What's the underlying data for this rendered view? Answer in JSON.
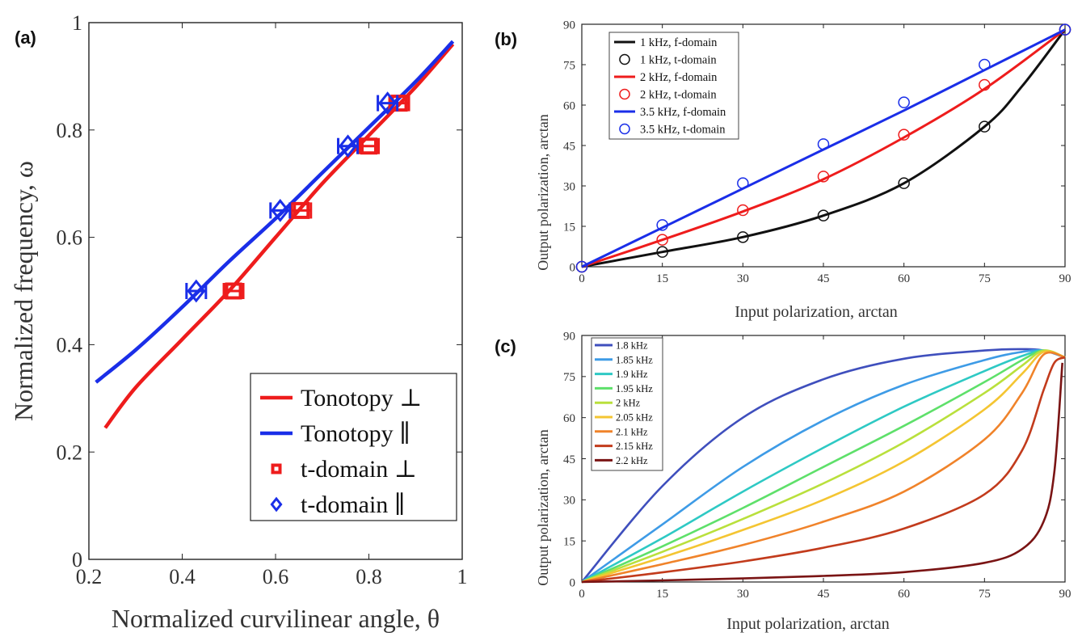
{
  "chart_data": [
    {
      "panel": "(a)",
      "type": "line",
      "xlabel": "Normalized curvilinear angle, θ",
      "ylabel": "Normalized frequency, ω",
      "xlim": [
        0.2,
        1.0
      ],
      "ylim": [
        0,
        1.0
      ],
      "xticks": [
        "0.2",
        "0.4",
        "0.6",
        "0.8",
        "1"
      ],
      "yticks": [
        "0",
        "0.2",
        "0.4",
        "0.6",
        "0.8",
        "1"
      ],
      "legend_position": "bottom-right",
      "series": [
        {
          "name": "Tonotopy ⊥",
          "kind": "line",
          "color": "#ee1c1c",
          "x": [
            0.235,
            0.3,
            0.4,
            0.5,
            0.6,
            0.7,
            0.8,
            0.9,
            0.98
          ],
          "y": [
            0.245,
            0.32,
            0.41,
            0.5,
            0.6,
            0.7,
            0.79,
            0.88,
            0.96
          ]
        },
        {
          "name": "Tonotopy ∥",
          "kind": "line",
          "color": "#1a2ee8",
          "x": [
            0.215,
            0.3,
            0.4,
            0.5,
            0.6,
            0.7,
            0.8,
            0.9,
            0.98
          ],
          "y": [
            0.33,
            0.39,
            0.47,
            0.555,
            0.635,
            0.72,
            0.805,
            0.89,
            0.965
          ]
        },
        {
          "name": "t-domain ⊥",
          "kind": "marker",
          "marker": "square",
          "color": "#ee1c1c",
          "x": [
            0.51,
            0.655,
            0.8,
            0.865
          ],
          "y": [
            0.5,
            0.65,
            0.77,
            0.85
          ]
        },
        {
          "name": "t-domain ∥",
          "kind": "marker",
          "marker": "diamond",
          "color": "#1a2ee8",
          "x": [
            0.43,
            0.61,
            0.755,
            0.84
          ],
          "y": [
            0.5,
            0.65,
            0.77,
            0.85
          ]
        }
      ]
    },
    {
      "panel": "(b)",
      "type": "line",
      "xlabel": "Input polarization, arctan",
      "ylabel": "Output polarization, arctan",
      "xlim": [
        0,
        90
      ],
      "ylim": [
        0,
        90
      ],
      "xticks": [
        "0",
        "15",
        "30",
        "45",
        "60",
        "75",
        "90"
      ],
      "yticks": [
        "0",
        "15",
        "30",
        "45",
        "60",
        "75",
        "90"
      ],
      "legend_position": "top-left",
      "series": [
        {
          "name": "1 kHz, f-domain",
          "kind": "line",
          "color": "#111111",
          "x": [
            0,
            15,
            30,
            45,
            60,
            75,
            82,
            90
          ],
          "y": [
            0,
            5.5,
            11,
            19,
            31,
            52,
            67,
            88
          ]
        },
        {
          "name": "1 kHz, t-domain",
          "kind": "marker",
          "marker": "circle",
          "color": "#111111",
          "x": [
            0,
            15,
            30,
            45,
            60,
            75,
            90
          ],
          "y": [
            0,
            5.5,
            11,
            19,
            31,
            52,
            88
          ]
        },
        {
          "name": "2 kHz, f-domain",
          "kind": "line",
          "color": "#ee1c1c",
          "x": [
            0,
            15,
            30,
            45,
            60,
            75,
            90
          ],
          "y": [
            0,
            10,
            20.5,
            32.5,
            48,
            66,
            88
          ]
        },
        {
          "name": "2 kHz, t-domain",
          "kind": "marker",
          "marker": "circle",
          "color": "#ee1c1c",
          "x": [
            0,
            15,
            30,
            45,
            60,
            75,
            90
          ],
          "y": [
            0,
            10,
            21,
            33.5,
            49,
            67.5,
            88
          ]
        },
        {
          "name": "3.5 kHz, f-domain",
          "kind": "line",
          "color": "#1a2ee8",
          "x": [
            0,
            15,
            30,
            45,
            60,
            75,
            90
          ],
          "y": [
            0,
            14.5,
            29,
            43.5,
            58,
            73,
            88
          ]
        },
        {
          "name": "3.5 kHz, t-domain",
          "kind": "marker",
          "marker": "circle",
          "color": "#1a2ee8",
          "x": [
            0,
            15,
            30,
            45,
            60,
            75,
            90
          ],
          "y": [
            0,
            15.5,
            31,
            45.5,
            61,
            75,
            88
          ]
        }
      ]
    },
    {
      "panel": "(c)",
      "type": "line",
      "xlabel": "Input polarization, arctan",
      "ylabel": "Output polarization, arctan",
      "xlim": [
        0,
        90
      ],
      "ylim": [
        0,
        90
      ],
      "xticks": [
        "0",
        "15",
        "30",
        "45",
        "60",
        "75",
        "90"
      ],
      "yticks": [
        "0",
        "15",
        "30",
        "45",
        "60",
        "75",
        "90"
      ],
      "legend_position": "top-left",
      "series": [
        {
          "name": "1.8 kHz",
          "color": "#3f4fbd",
          "x": [
            0,
            15,
            30,
            45,
            60,
            75,
            82,
            86,
            90
          ],
          "y": [
            0,
            35,
            60,
            74,
            81.5,
            84.5,
            85,
            84.5,
            82
          ]
        },
        {
          "name": "1.85 kHz",
          "color": "#3e9be6",
          "x": [
            0,
            15,
            30,
            45,
            60,
            75,
            82,
            86,
            90
          ],
          "y": [
            0,
            21,
            42,
            59,
            72,
            81,
            84,
            84.5,
            82
          ]
        },
        {
          "name": "1.9 kHz",
          "color": "#2ec9c4",
          "x": [
            0,
            15,
            30,
            45,
            60,
            75,
            82,
            86,
            90
          ],
          "y": [
            0,
            16,
            33,
            49,
            64,
            77,
            82.5,
            84.5,
            82
          ]
        },
        {
          "name": "1.95 kHz",
          "color": "#5ee06a",
          "x": [
            0,
            15,
            30,
            45,
            60,
            75,
            82,
            86,
            90
          ],
          "y": [
            0,
            13,
            27,
            42,
            57,
            73,
            81,
            84.5,
            82
          ]
        },
        {
          "name": "2 kHz",
          "color": "#b9e03c",
          "x": [
            0,
            15,
            30,
            45,
            60,
            75,
            82,
            86,
            90
          ],
          "y": [
            0,
            11,
            23,
            36,
            51,
            69,
            79,
            84.5,
            82
          ]
        },
        {
          "name": "2.05 kHz",
          "color": "#f4c532",
          "x": [
            0,
            15,
            30,
            45,
            60,
            75,
            82,
            86,
            90
          ],
          "y": [
            0,
            9,
            19,
            30,
            44,
            63,
            76,
            84,
            82
          ]
        },
        {
          "name": "2.1 kHz",
          "color": "#f0832a",
          "x": [
            0,
            15,
            30,
            45,
            60,
            75,
            82,
            86,
            90
          ],
          "y": [
            0,
            6.5,
            13.5,
            22,
            33,
            52,
            69,
            83,
            82
          ]
        },
        {
          "name": "2.15 kHz",
          "color": "#c23b1c",
          "x": [
            0,
            15,
            30,
            45,
            60,
            75,
            82,
            86,
            88,
            90
          ],
          "y": [
            0,
            3.5,
            7.5,
            12.5,
            19.5,
            32,
            48,
            70,
            80,
            82
          ]
        },
        {
          "name": "2.2 kHz",
          "color": "#7a1414",
          "x": [
            0,
            15,
            30,
            45,
            60,
            75,
            82,
            86,
            88,
            89.5
          ],
          "y": [
            0,
            0.6,
            1.3,
            2.2,
            3.6,
            7,
            12,
            22,
            40,
            80
          ]
        }
      ]
    }
  ]
}
